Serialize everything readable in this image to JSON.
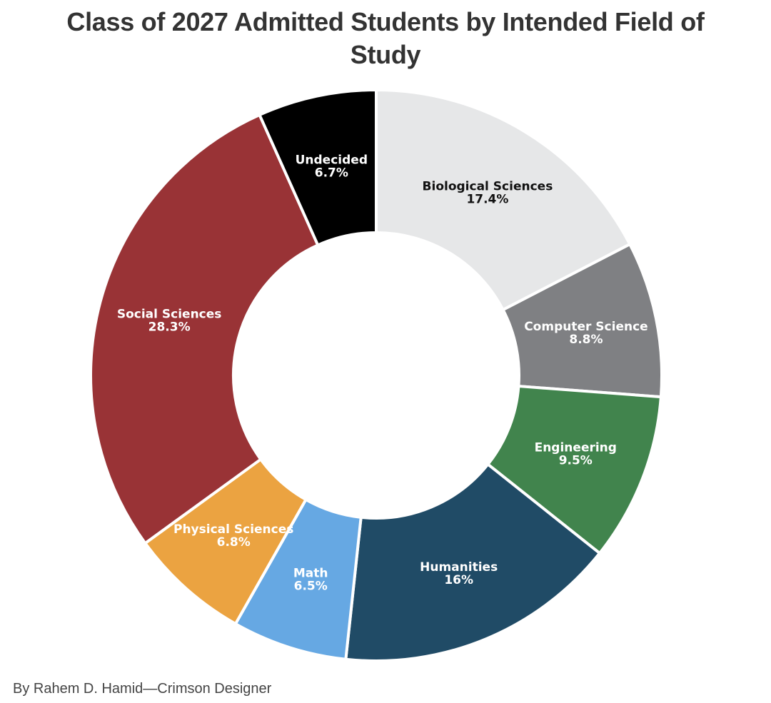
{
  "chart_data": {
    "type": "pie",
    "title": "Class of 2027 Admitted Students by Intended Field of Study",
    "legend": "none",
    "unit": "%",
    "slices": [
      {
        "label": "Biological Sciences",
        "value": 17.4,
        "value_label": "17.4%",
        "color": "#e6e7e8",
        "text_color": "#111111"
      },
      {
        "label": "Computer Science",
        "value": 8.8,
        "value_label": "8.8%",
        "color": "#7f8083",
        "text_color": "#ffffff"
      },
      {
        "label": "Engineering",
        "value": 9.5,
        "value_label": "9.5%",
        "color": "#41844d",
        "text_color": "#ffffff"
      },
      {
        "label": "Humanities",
        "value": 16,
        "value_label": "16%",
        "color": "#204b66",
        "text_color": "#ffffff"
      },
      {
        "label": "Math",
        "value": 6.5,
        "value_label": "6.5%",
        "color": "#66a8e3",
        "text_color": "#ffffff"
      },
      {
        "label": "Physical Sciences",
        "value": 6.8,
        "value_label": "6.8%",
        "color": "#eba341",
        "text_color": "#ffffff"
      },
      {
        "label": "Social Sciences",
        "value": 28.3,
        "value_label": "28.3%",
        "color": "#993336",
        "text_color": "#ffffff"
      },
      {
        "label": "Undecided",
        "value": 6.7,
        "value_label": "6.7%",
        "color": "#000000",
        "text_color": "#ffffff"
      }
    ]
  },
  "credit": "By Rahem D. Hamid—Crimson Designer"
}
